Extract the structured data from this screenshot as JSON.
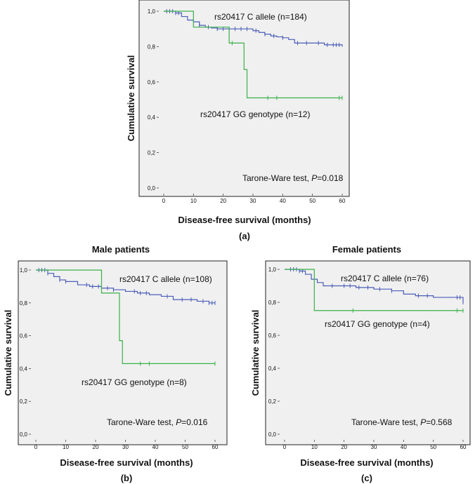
{
  "chart_data": [
    {
      "type": "line",
      "panel": "a",
      "title": "",
      "panel_label": "(a)",
      "xlabel": "Disease-free survival (months)",
      "ylabel": "Cumulative survival",
      "xlim": [
        0,
        60
      ],
      "ylim": [
        0.0,
        1.0
      ],
      "xticks": [
        "0",
        "10",
        "20",
        "30",
        "40",
        "50",
        "60"
      ],
      "yticks": [
        "0,0",
        "0,2",
        "0,4",
        "0,6",
        "0,8",
        "1,0"
      ],
      "test_prefix": "Tarone-Ware test, ",
      "test_p_symbol": "P",
      "test_p_value": "=0.018",
      "series": [
        {
          "name": "rs20417 C allele (n=184)",
          "color": "#4a5db8",
          "x": [
            0,
            2,
            4,
            6,
            8,
            10,
            12,
            14,
            16,
            18,
            20,
            22,
            24,
            26,
            28,
            30,
            32,
            34,
            36,
            38,
            40,
            42,
            44,
            46,
            48,
            50,
            52,
            54,
            56,
            58,
            60
          ],
          "y": [
            1.0,
            1.0,
            0.99,
            0.97,
            0.95,
            0.94,
            0.92,
            0.91,
            0.905,
            0.9,
            0.9,
            0.9,
            0.9,
            0.9,
            0.9,
            0.89,
            0.88,
            0.87,
            0.86,
            0.855,
            0.85,
            0.84,
            0.82,
            0.82,
            0.82,
            0.82,
            0.82,
            0.81,
            0.81,
            0.81,
            0.8
          ],
          "censored_x": [
            1,
            2,
            3,
            4,
            5,
            12,
            15,
            18,
            20,
            22,
            24,
            26,
            28,
            31,
            34,
            37,
            40,
            45,
            48,
            52,
            55,
            57,
            58,
            59
          ]
        },
        {
          "name": "rs20417 GG genotype (n=12)",
          "color": "#3ab04a",
          "x": [
            0,
            10,
            10,
            22,
            22,
            27,
            27,
            28,
            28,
            60
          ],
          "y": [
            1.0,
            1.0,
            0.91,
            0.91,
            0.82,
            0.82,
            0.67,
            0.67,
            0.51,
            0.51
          ],
          "censored_x": [
            23,
            35,
            38,
            59,
            60
          ]
        }
      ]
    },
    {
      "type": "line",
      "panel": "b",
      "title": "Male patients",
      "panel_label": "(b)",
      "xlabel": "Disease-free survival (months)",
      "ylabel": "Cumulative survival",
      "xlim": [
        0,
        60
      ],
      "ylim": [
        0.0,
        1.0
      ],
      "xticks": [
        "0",
        "10",
        "20",
        "30",
        "40",
        "50",
        "60"
      ],
      "yticks": [
        "0,0",
        "0,2",
        "0,4",
        "0,6",
        "0,8",
        "1,0"
      ],
      "test_prefix": "Tarone-Ware test, ",
      "test_p_symbol": "P",
      "test_p_value": "=0.016",
      "series": [
        {
          "name": "rs20417 C allele (n=108)",
          "color": "#4a5db8",
          "x": [
            0,
            4,
            6,
            8,
            10,
            14,
            18,
            22,
            26,
            30,
            34,
            38,
            42,
            46,
            50,
            54,
            58,
            60
          ],
          "y": [
            1.0,
            0.98,
            0.96,
            0.94,
            0.93,
            0.91,
            0.9,
            0.89,
            0.88,
            0.87,
            0.86,
            0.85,
            0.84,
            0.82,
            0.82,
            0.81,
            0.8,
            0.8
          ],
          "censored_x": [
            1,
            2,
            3,
            4,
            8,
            10,
            17,
            19,
            21,
            24,
            26,
            33,
            35,
            37,
            44,
            49,
            52,
            56,
            58,
            59,
            60
          ]
        },
        {
          "name": "rs20417 GG genotype (n=8)",
          "color": "#3ab04a",
          "x": [
            0,
            22,
            22,
            28,
            28,
            29,
            29,
            60
          ],
          "y": [
            1.0,
            1.0,
            0.86,
            0.86,
            0.57,
            0.57,
            0.43,
            0.43
          ],
          "censored_x": [
            35,
            38,
            60
          ]
        }
      ]
    },
    {
      "type": "line",
      "panel": "c",
      "title": "Female patients",
      "panel_label": "(c)",
      "xlabel": "Disease-free survival (months)",
      "ylabel": "Cumulative survival",
      "xlim": [
        0,
        60
      ],
      "ylim": [
        0.0,
        1.0
      ],
      "xticks": [
        "0",
        "10",
        "20",
        "30",
        "40",
        "50",
        "60"
      ],
      "yticks": [
        "0,0",
        "0,2",
        "0,4",
        "0,6",
        "0,8",
        "1,0"
      ],
      "test_prefix": "Tarone-Ware test, ",
      "test_p_symbol": "P",
      "test_p_value": "=0.568",
      "series": [
        {
          "name": "rs20417 C allele (n=76)",
          "color": "#4a5db8",
          "x": [
            0,
            5,
            7,
            9,
            11,
            13,
            18,
            24,
            30,
            36,
            40,
            44,
            50,
            56,
            60
          ],
          "y": [
            1.0,
            0.99,
            0.97,
            0.94,
            0.92,
            0.9,
            0.9,
            0.89,
            0.88,
            0.87,
            0.85,
            0.84,
            0.83,
            0.83,
            0.8
          ],
          "censored_x": [
            2,
            3,
            4,
            5,
            6,
            16,
            20,
            22,
            25,
            28,
            32,
            36,
            45,
            48,
            58,
            59,
            60
          ]
        },
        {
          "name": "rs20417 GG genotype (n=4)",
          "color": "#3ab04a",
          "x": [
            0,
            10,
            10,
            60
          ],
          "y": [
            1.0,
            1.0,
            0.75,
            0.75
          ],
          "censored_x": [
            23,
            58,
            60
          ]
        }
      ]
    }
  ]
}
